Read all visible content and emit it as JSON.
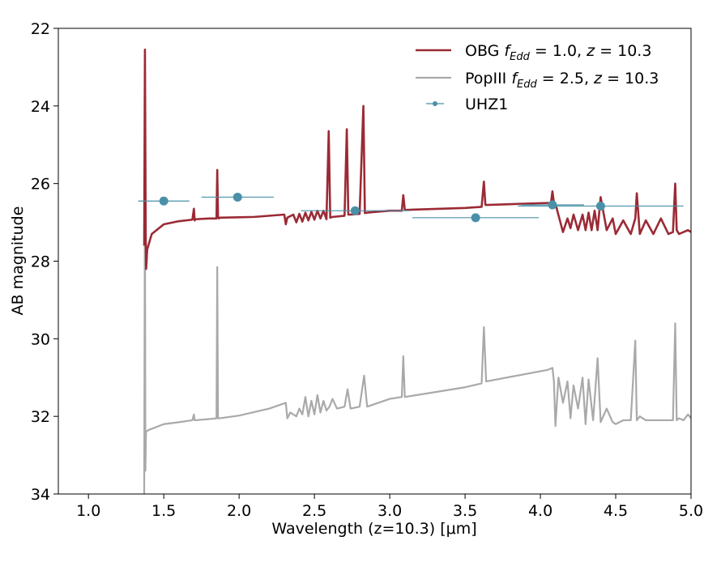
{
  "chart_data": {
    "type": "line",
    "xlabel": "Wavelength (z=10.3) [μm]",
    "ylabel": "AB magnitude",
    "xlim": [
      0.8,
      5.0
    ],
    "ylim": [
      34,
      22
    ],
    "y_inverted": true,
    "x_ticks": [
      1.0,
      1.5,
      2.0,
      2.5,
      3.0,
      3.5,
      4.0,
      4.5,
      5.0
    ],
    "x_tick_labels": [
      "1.0",
      "1.5",
      "2.0",
      "2.5",
      "3.0",
      "3.5",
      "4.0",
      "4.5",
      "5.0"
    ],
    "y_ticks": [
      22,
      24,
      26,
      28,
      30,
      32,
      34
    ],
    "y_tick_labels": [
      "22",
      "24",
      "26",
      "28",
      "30",
      "32",
      "34"
    ],
    "grid": false,
    "legend_position": "top-right",
    "colors": {
      "obg": "#9b2a35",
      "popiii": "#a9a9a9",
      "uhz1": "#4a90a8"
    },
    "series": [
      {
        "name": "OBG f_Edd = 1.0, z = 10.3",
        "legend": {
          "prefix": "OBG ",
          "f": "f",
          "sub": "Edd",
          "rest": " = 1.0, ",
          "z": "z",
          "zval": " = 10.3"
        },
        "color_key": "obg",
        "x": [
          1.37,
          1.375,
          1.38,
          1.383,
          1.386,
          1.39,
          1.42,
          1.5,
          1.6,
          1.69,
          1.7,
          1.705,
          1.71,
          1.8,
          1.85,
          1.855,
          1.86,
          1.865,
          1.87,
          2.0,
          2.1,
          2.3,
          2.31,
          2.32,
          2.36,
          2.38,
          2.4,
          2.42,
          2.44,
          2.46,
          2.48,
          2.5,
          2.52,
          2.54,
          2.56,
          2.58,
          2.595,
          2.605,
          2.62,
          2.7,
          2.715,
          2.725,
          2.74,
          2.8,
          2.825,
          2.835,
          2.85,
          3.0,
          3.08,
          3.09,
          3.1,
          3.5,
          3.61,
          3.625,
          3.635,
          3.65,
          4.05,
          4.07,
          4.08,
          4.09,
          4.1,
          4.15,
          4.18,
          4.2,
          4.22,
          4.25,
          4.28,
          4.3,
          4.32,
          4.34,
          4.36,
          4.38,
          4.4,
          4.44,
          4.48,
          4.5,
          4.55,
          4.6,
          4.63,
          4.64,
          4.66,
          4.7,
          4.75,
          4.8,
          4.85,
          4.88,
          4.895,
          4.905,
          4.92,
          4.95,
          4.98,
          5.0
        ],
        "y": [
          27.6,
          22.55,
          27.3,
          28.2,
          28.0,
          27.7,
          27.3,
          27.05,
          26.97,
          26.93,
          26.65,
          26.95,
          26.92,
          26.9,
          26.9,
          25.65,
          26.85,
          26.9,
          26.88,
          26.87,
          26.86,
          26.8,
          27.05,
          26.88,
          26.8,
          27.0,
          26.78,
          26.98,
          26.75,
          26.95,
          26.73,
          26.93,
          26.7,
          26.9,
          26.7,
          26.92,
          24.65,
          26.88,
          26.86,
          26.83,
          24.6,
          26.8,
          26.8,
          26.78,
          24.0,
          26.76,
          26.75,
          26.7,
          26.7,
          26.3,
          26.68,
          26.63,
          26.6,
          25.95,
          26.55,
          26.55,
          26.5,
          26.5,
          26.2,
          26.5,
          26.52,
          27.25,
          26.9,
          27.15,
          26.8,
          27.2,
          26.8,
          27.2,
          26.75,
          27.2,
          26.7,
          27.2,
          26.35,
          27.2,
          26.9,
          27.3,
          26.95,
          27.3,
          26.9,
          26.25,
          27.3,
          26.95,
          27.3,
          26.9,
          27.3,
          27.25,
          26.0,
          27.2,
          27.3,
          27.25,
          27.2,
          27.25
        ]
      },
      {
        "name": "PopIII f_Edd = 2.5, z = 10.3",
        "legend": {
          "prefix": "PopIII ",
          "f": "f",
          "sub": "Edd",
          "rest": " = 2.5, ",
          "z": "z",
          "zval": " = 10.3"
        },
        "color_key": "popiii",
        "x": [
          1.37,
          1.375,
          1.378,
          1.382,
          1.4,
          1.5,
          1.6,
          1.69,
          1.7,
          1.705,
          1.71,
          1.8,
          1.85,
          1.855,
          1.86,
          1.87,
          2.0,
          2.2,
          2.31,
          2.32,
          2.34,
          2.38,
          2.4,
          2.42,
          2.44,
          2.46,
          2.48,
          2.5,
          2.52,
          2.54,
          2.56,
          2.58,
          2.6,
          2.62,
          2.65,
          2.7,
          2.72,
          2.74,
          2.8,
          2.83,
          2.85,
          3.0,
          3.08,
          3.09,
          3.1,
          3.5,
          3.61,
          3.625,
          3.64,
          4.05,
          4.08,
          4.09,
          4.1,
          4.12,
          4.15,
          4.18,
          4.2,
          4.22,
          4.25,
          4.28,
          4.3,
          4.32,
          4.35,
          4.38,
          4.4,
          4.44,
          4.48,
          4.5,
          4.55,
          4.6,
          4.63,
          4.64,
          4.66,
          4.7,
          4.75,
          4.8,
          4.85,
          4.88,
          4.895,
          4.905,
          4.92,
          4.95,
          4.98,
          5.0
        ],
        "y": [
          34.0,
          25.9,
          33.4,
          32.4,
          32.35,
          32.2,
          32.15,
          32.1,
          31.95,
          32.1,
          32.1,
          32.07,
          32.05,
          28.15,
          32.05,
          32.05,
          31.98,
          31.8,
          31.65,
          32.05,
          31.9,
          32.0,
          31.8,
          31.95,
          31.5,
          32.0,
          31.6,
          31.95,
          31.45,
          31.9,
          31.6,
          31.85,
          31.75,
          31.55,
          31.8,
          31.75,
          31.3,
          31.8,
          31.75,
          30.95,
          31.75,
          31.55,
          31.5,
          30.45,
          31.5,
          31.25,
          31.15,
          29.7,
          31.1,
          30.8,
          30.75,
          31.1,
          32.25,
          31.0,
          31.65,
          31.1,
          32.05,
          31.2,
          31.8,
          31.0,
          32.2,
          31.05,
          32.1,
          30.5,
          32.15,
          31.8,
          32.15,
          32.2,
          32.1,
          32.1,
          30.05,
          32.1,
          32.0,
          32.1,
          32.1,
          32.1,
          32.1,
          32.1,
          29.6,
          32.1,
          32.05,
          32.1,
          31.95,
          32.05
        ]
      }
    ],
    "points": {
      "name": "UHZ1",
      "color_key": "uhz1",
      "data": [
        {
          "x": 1.5,
          "y": 26.45,
          "xerr": 0.17
        },
        {
          "x": 1.99,
          "y": 26.35,
          "xerr": 0.24
        },
        {
          "x": 2.77,
          "y": 26.7,
          "xerr": 0.36
        },
        {
          "x": 3.57,
          "y": 26.88,
          "xerr": 0.42
        },
        {
          "x": 4.08,
          "y": 26.55,
          "xerr": 0.21
        },
        {
          "x": 4.4,
          "y": 26.58,
          "xerr": 0.55
        }
      ]
    }
  }
}
